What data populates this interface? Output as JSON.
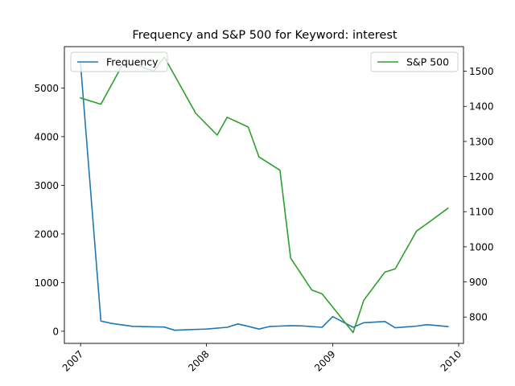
{
  "chart_data": {
    "type": "line",
    "title": "Frequency and S&P 500 for Keyword: interest",
    "xlabel": "",
    "x_ticks": [
      "2007",
      "2008",
      "2009",
      "2010"
    ],
    "left_axis": {
      "ylim": [
        -250,
        5850
      ],
      "ticks": [
        0,
        1000,
        2000,
        3000,
        4000,
        5000
      ]
    },
    "right_axis": {
      "ylim": [
        725,
        1570
      ],
      "ticks": [
        800,
        900,
        1000,
        1100,
        1200,
        1300,
        1400,
        1500
      ]
    },
    "xlim": [
      "2006-11-15",
      "2010-01-15"
    ],
    "grid": false,
    "series": [
      {
        "name": "Frequency",
        "axis": "left",
        "color": "#1f77b4",
        "legend_position": "upper-left",
        "points": [
          [
            "2007-01-01",
            5500
          ],
          [
            "2007-03-01",
            210
          ],
          [
            "2007-04-01",
            160
          ],
          [
            "2007-06-01",
            100
          ],
          [
            "2007-08-01",
            90
          ],
          [
            "2007-09-01",
            85
          ],
          [
            "2007-10-01",
            20
          ],
          [
            "2007-11-01",
            30
          ],
          [
            "2008-01-01",
            45
          ],
          [
            "2008-03-01",
            80
          ],
          [
            "2008-04-01",
            150
          ],
          [
            "2008-05-01",
            100
          ],
          [
            "2008-06-01",
            45
          ],
          [
            "2008-07-01",
            95
          ],
          [
            "2008-08-01",
            105
          ],
          [
            "2008-09-01",
            115
          ],
          [
            "2008-10-01",
            110
          ],
          [
            "2008-12-01",
            80
          ],
          [
            "2009-01-01",
            300
          ],
          [
            "2009-03-01",
            80
          ],
          [
            "2009-04-01",
            175
          ],
          [
            "2009-06-01",
            200
          ],
          [
            "2009-07-01",
            70
          ],
          [
            "2009-09-01",
            105
          ],
          [
            "2009-10-01",
            135
          ],
          [
            "2009-12-01",
            95
          ]
        ]
      },
      {
        "name": "S&P 500",
        "axis": "right",
        "color": "#2ca02c",
        "legend_position": "upper-right",
        "points": [
          [
            "2007-01-01",
            1424
          ],
          [
            "2007-03-01",
            1406
          ],
          [
            "2007-05-01",
            1516
          ],
          [
            "2007-06-01",
            1522
          ],
          [
            "2007-08-01",
            1500
          ],
          [
            "2007-09-01",
            1540
          ],
          [
            "2007-12-01",
            1380
          ],
          [
            "2008-02-01",
            1318
          ],
          [
            "2008-03-01",
            1369
          ],
          [
            "2008-05-01",
            1341
          ],
          [
            "2008-06-01",
            1256
          ],
          [
            "2008-08-01",
            1218
          ],
          [
            "2008-09-01",
            968
          ],
          [
            "2008-11-01",
            877
          ],
          [
            "2008-12-01",
            866
          ],
          [
            "2009-03-01",
            756
          ],
          [
            "2009-04-01",
            848
          ],
          [
            "2009-06-01",
            928
          ],
          [
            "2009-07-01",
            937
          ],
          [
            "2009-09-01",
            1045
          ],
          [
            "2009-10-01",
            1066
          ],
          [
            "2009-12-01",
            1110
          ]
        ]
      }
    ]
  }
}
